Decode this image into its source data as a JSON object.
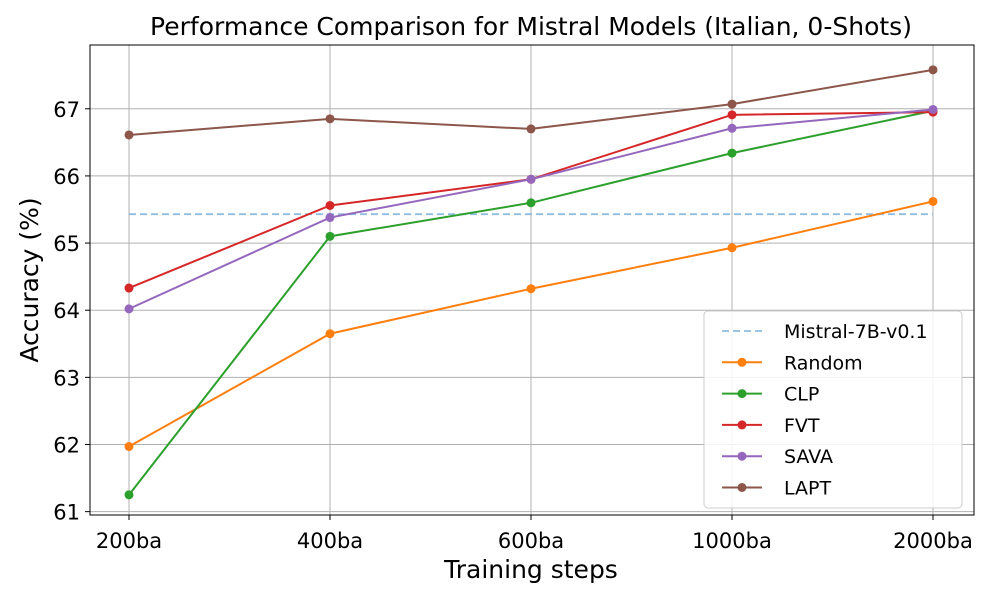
{
  "chart_data": {
    "type": "line",
    "title": "Performance Comparison for Mistral Models (Italian, 0-Shots)",
    "xlabel": "Training steps",
    "ylabel": "Accuracy (%)",
    "categories": [
      "200ba",
      "400ba",
      "600ba",
      "1000ba",
      "2000ba"
    ],
    "ylim": [
      60.95,
      67.95
    ],
    "yticks": [
      61,
      62,
      63,
      64,
      65,
      66,
      67
    ],
    "grid": true,
    "legend_position": "lower-right",
    "baseline": {
      "name": "Mistral-7B-v0.1",
      "value": 65.43,
      "color": "#8fbde0",
      "style": "dashed"
    },
    "series": [
      {
        "name": "Random",
        "color": "#ff7f0e",
        "values": [
          61.97,
          63.65,
          64.32,
          64.93,
          65.62
        ]
      },
      {
        "name": "CLP",
        "color": "#2ca02c",
        "values": [
          61.25,
          65.1,
          65.6,
          66.34,
          66.97
        ]
      },
      {
        "name": "FVT",
        "color": "#d62728",
        "values": [
          64.33,
          65.56,
          65.95,
          66.91,
          66.95
        ]
      },
      {
        "name": "SAVA",
        "color": "#9467bd",
        "values": [
          64.02,
          65.38,
          65.95,
          66.71,
          66.99
        ]
      },
      {
        "name": "LAPT",
        "color": "#8c564b",
        "values": [
          66.61,
          66.85,
          66.7,
          67.07,
          67.58
        ]
      }
    ]
  }
}
